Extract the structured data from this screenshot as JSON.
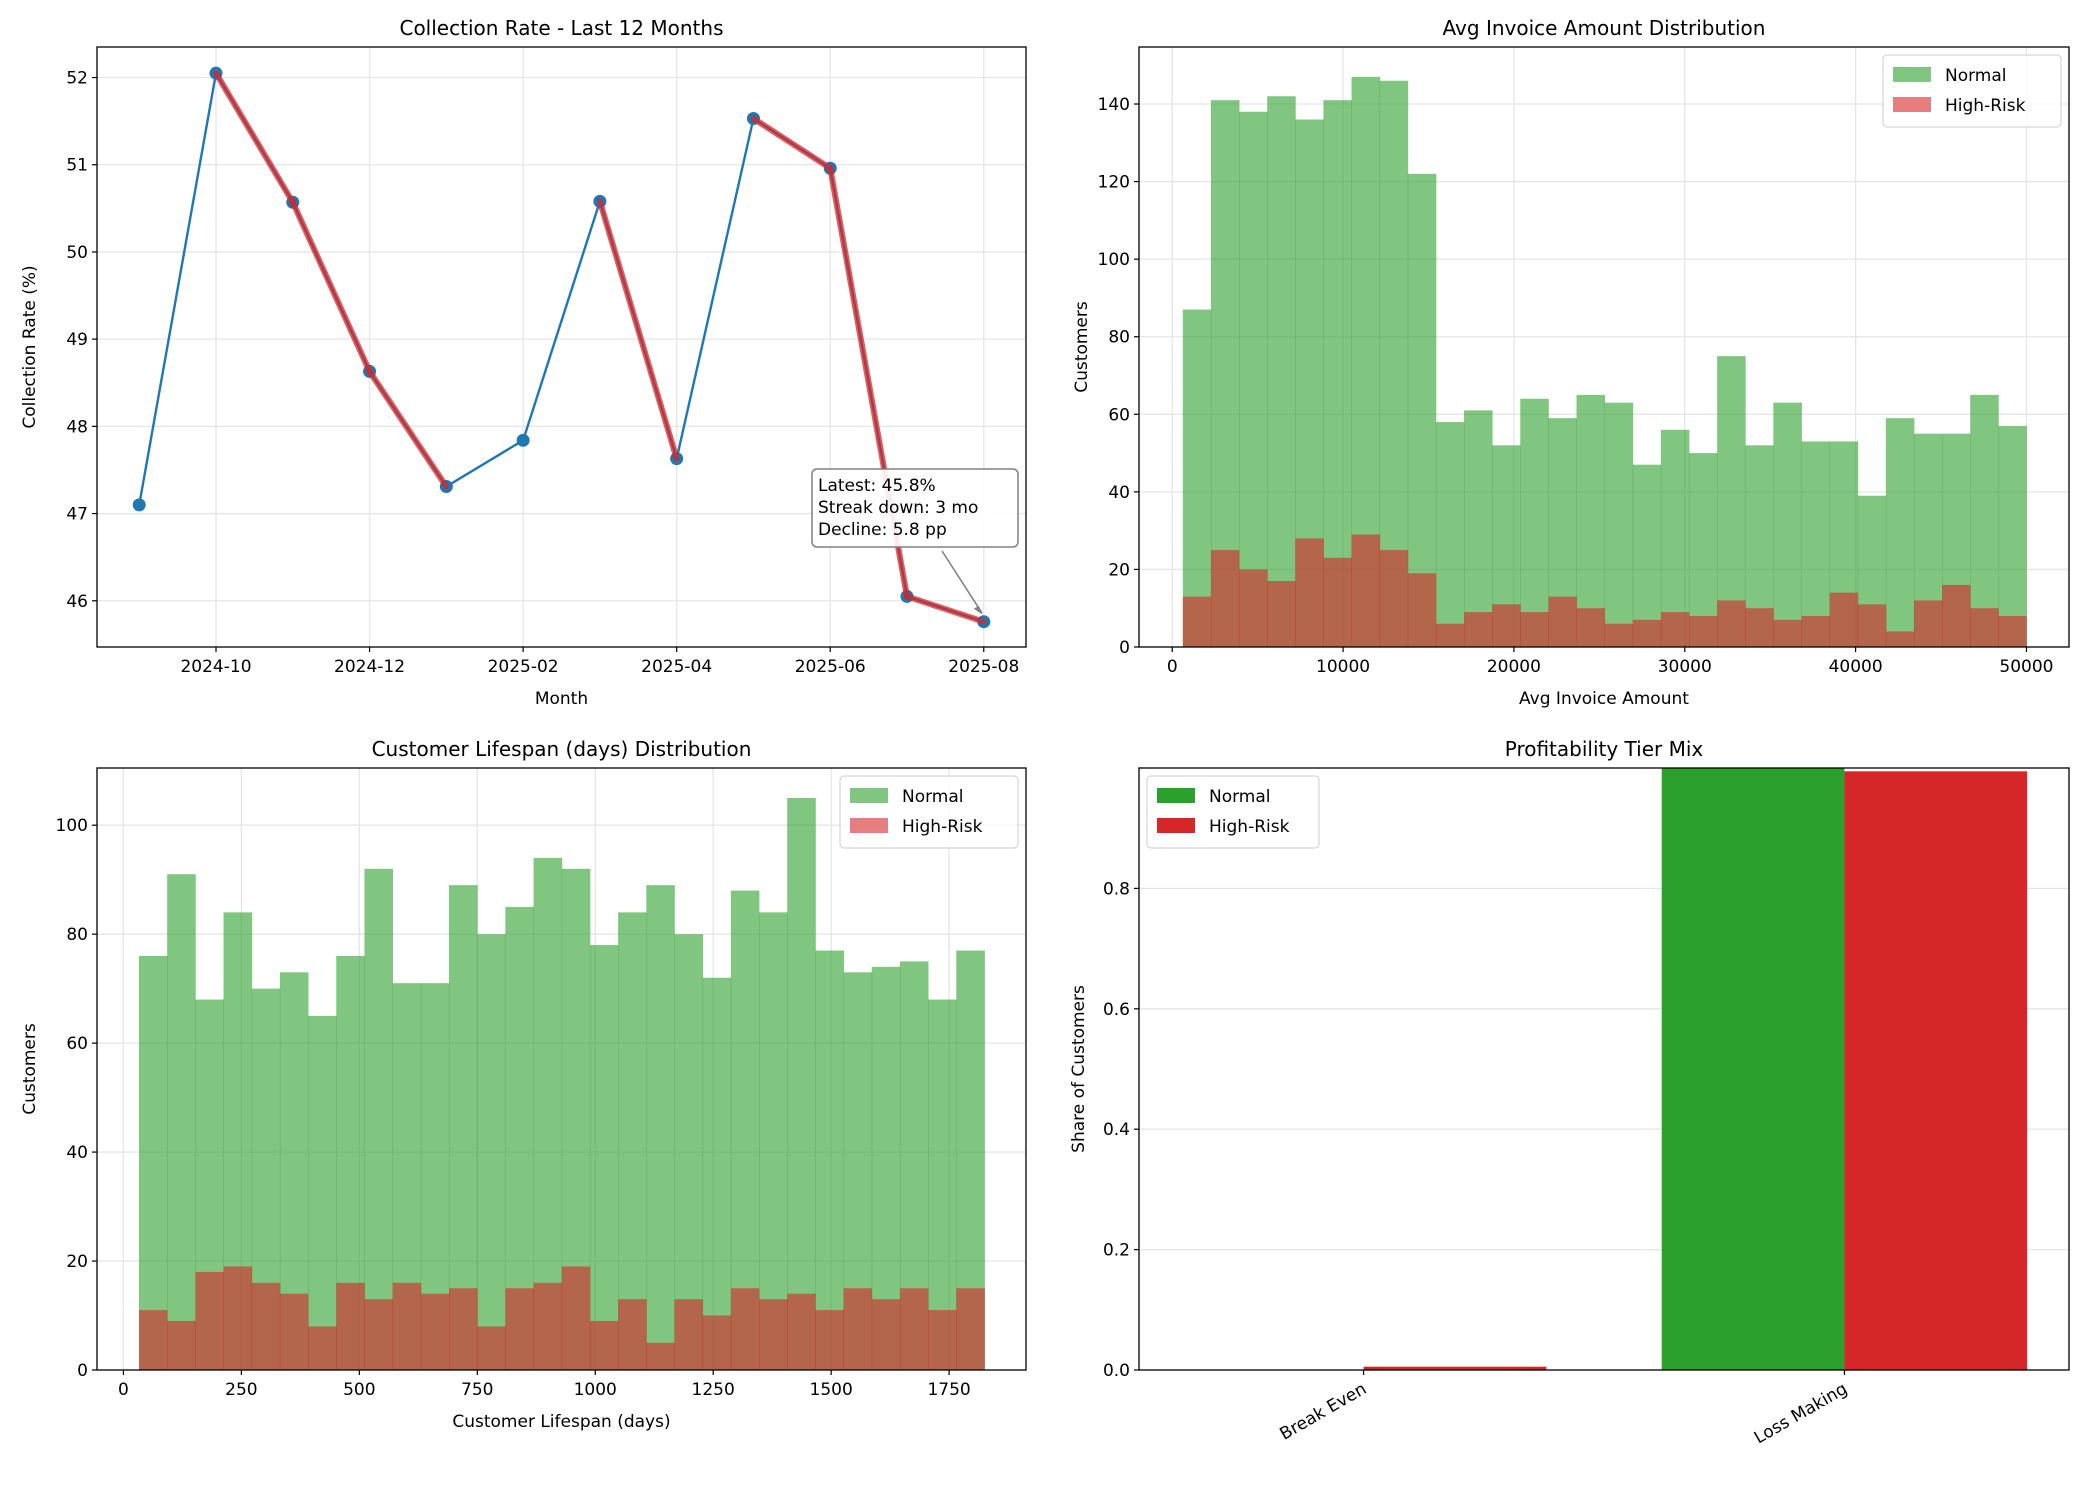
{
  "chart_data": [
    {
      "type": "line",
      "title": "Collection Rate - Last 12 Months",
      "xlabel": "Month",
      "ylabel": "Collection Rate (%)",
      "x": [
        "2024-09",
        "2024-10",
        "2024-11",
        "2024-12",
        "2025-01",
        "2025-02",
        "2025-03",
        "2025-04",
        "2025-05",
        "2025-06",
        "2025-07",
        "2025-08"
      ],
      "values": [
        47.1,
        52.05,
        50.57,
        48.63,
        47.31,
        47.84,
        50.58,
        47.63,
        51.53,
        50.96,
        46.05,
        45.76
      ],
      "declining_segments_highlighted": [
        [
          1,
          2
        ],
        [
          2,
          3
        ],
        [
          3,
          4
        ],
        [
          6,
          7
        ],
        [
          8,
          9
        ],
        [
          9,
          10
        ],
        [
          10,
          11
        ]
      ],
      "xticks": [
        "2024-10",
        "2024-12",
        "2025-02",
        "2025-04",
        "2025-06",
        "2025-08"
      ],
      "yticks": [
        46,
        47,
        48,
        49,
        50,
        51,
        52
      ],
      "ylim": [
        45.47,
        52.35
      ],
      "grid": true,
      "line_color": "#1f77b4",
      "highlight_color": "#d62728",
      "annotation": {
        "lines": [
          "Latest: 45.8%",
          "Streak down: 3 mo",
          "Decline: 5.8 pp"
        ],
        "points_to": "2025-08"
      }
    },
    {
      "type": "histogram",
      "title": "Avg Invoice Amount Distribution",
      "xlabel": "Avg Invoice Amount",
      "ylabel": "Customers",
      "bin_range": [
        620,
        50000
      ],
      "bins": 30,
      "series": [
        {
          "name": "Normal",
          "color": "#2ca02c",
          "values": [
            87,
            141,
            138,
            142,
            136,
            141,
            147,
            146,
            122,
            58,
            61,
            52,
            64,
            59,
            65,
            63,
            47,
            56,
            50,
            75,
            52,
            63,
            53,
            53,
            39,
            59,
            55,
            55,
            65,
            57
          ]
        },
        {
          "name": "High-Risk",
          "color": "#d62728",
          "values": [
            13,
            25,
            20,
            17,
            28,
            23,
            29,
            25,
            19,
            6,
            9,
            11,
            9,
            13,
            10,
            6,
            7,
            9,
            8,
            12,
            10,
            7,
            8,
            14,
            11,
            4,
            12,
            16,
            10,
            8
          ]
        }
      ],
      "xticks": [
        0,
        10000,
        20000,
        30000,
        40000,
        50000
      ],
      "yticks": [
        0,
        20,
        40,
        60,
        80,
        100,
        120,
        140
      ],
      "xlim": [
        -1945,
        52490
      ],
      "ylim": [
        0,
        154.7
      ],
      "grid": true,
      "legend": "top-right"
    },
    {
      "type": "histogram",
      "title": "Customer Lifespan (days) Distribution",
      "xlabel": "Customer Lifespan (days)",
      "ylabel": "Customers",
      "bin_range": [
        33,
        1825
      ],
      "bins": 30,
      "series": [
        {
          "name": "Normal",
          "color": "#2ca02c",
          "values": [
            76,
            91,
            68,
            84,
            70,
            73,
            65,
            76,
            92,
            71,
            71,
            89,
            80,
            85,
            94,
            92,
            78,
            84,
            89,
            80,
            72,
            88,
            84,
            105,
            77,
            73,
            74,
            75,
            68,
            77
          ]
        },
        {
          "name": "High-Risk",
          "color": "#d62728",
          "values": [
            11,
            9,
            18,
            19,
            16,
            14,
            8,
            16,
            13,
            16,
            14,
            15,
            8,
            15,
            16,
            19,
            9,
            13,
            5,
            13,
            10,
            15,
            13,
            14,
            11,
            15,
            13,
            15,
            11,
            15
          ]
        }
      ],
      "xticks": [
        0,
        250,
        500,
        750,
        1000,
        1250,
        1500,
        1750
      ],
      "yticks": [
        0,
        20,
        40,
        60,
        80,
        100
      ],
      "xlim": [
        -56,
        1913
      ],
      "ylim": [
        0,
        110.5
      ],
      "grid": true,
      "legend": "top-right"
    },
    {
      "type": "bar",
      "title": "Profitability Tier Mix",
      "xlabel": "",
      "ylabel": "Share of Customers",
      "categories": [
        "Break Even",
        "Loss Making"
      ],
      "series": [
        {
          "name": "Normal",
          "color": "#2ca02c",
          "values": [
            0.0,
            1.0
          ]
        },
        {
          "name": "High-Risk",
          "color": "#d62728",
          "values": [
            0.0055,
            0.9945
          ]
        }
      ],
      "yticks": [
        0.0,
        0.2,
        0.4,
        0.6,
        0.8
      ],
      "ylim": [
        0,
        1.0
      ],
      "grid": true,
      "legend": "top-left"
    }
  ]
}
